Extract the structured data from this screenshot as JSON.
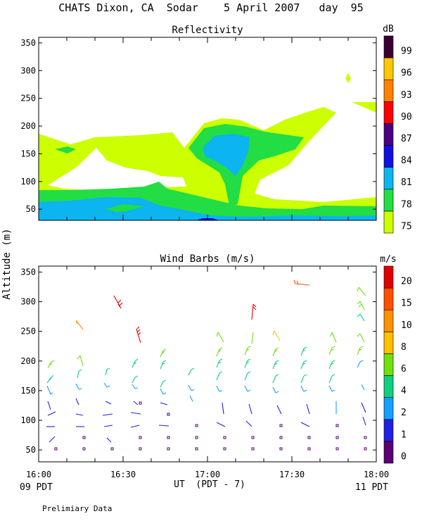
{
  "title": "CHATS Dixon, CA  Sodar    5 April 2007   day  95",
  "ylabel": "Altitude (m)",
  "xlabel": "UT  (PDT - 7)",
  "left_time_label": "09 PDT",
  "right_time_label": "11 PDT",
  "footnote": "Prelimiary Data",
  "chart_data": [
    {
      "type": "heatmap",
      "title": "Reflectivity",
      "xlabel": "UT  (PDT - 7)",
      "ylabel": "Altitude (m)",
      "x_ticks": [
        "16:00",
        "16:30",
        "17:00",
        "17:30",
        "18:00"
      ],
      "y_ticks": [
        50,
        100,
        150,
        200,
        250,
        300,
        350
      ],
      "ylim": [
        30,
        360
      ],
      "legend_title": "dB",
      "legend_levels": [
        {
          "label": "75",
          "color": "#ccff00"
        },
        {
          "label": "78",
          "color": "#22dd44"
        },
        {
          "label": "81",
          "color": "#0cb4f0"
        },
        {
          "label": "84",
          "color": "#1010e0"
        },
        {
          "label": "87",
          "color": "#4b0082"
        },
        {
          "label": "90",
          "color": "#ff0000"
        },
        {
          "label": "93",
          "color": "#ff8000"
        },
        {
          "label": "96",
          "color": "#ffc800"
        },
        {
          "label": "99",
          "color": "#3a0033"
        }
      ]
    },
    {
      "type": "scatter",
      "title": "Wind Barbs (m/s)",
      "xlabel": "UT  (PDT - 7)",
      "ylabel": "Altitude (m)",
      "x_ticks": [
        "16:00",
        "16:30",
        "17:00",
        "17:30",
        "18:00"
      ],
      "y_ticks": [
        50,
        100,
        150,
        200,
        250,
        300,
        350
      ],
      "ylim": [
        30,
        360
      ],
      "legend_title": "m/s",
      "legend_levels": [
        {
          "label": "0",
          "color": "#5a0070"
        },
        {
          "label": "1",
          "color": "#2020e0"
        },
        {
          "label": "2",
          "color": "#14a0ff"
        },
        {
          "label": "4",
          "color": "#10d080"
        },
        {
          "label": "6",
          "color": "#70e010"
        },
        {
          "label": "8",
          "color": "#ffc000"
        },
        {
          "label": "10",
          "color": "#ff9000"
        },
        {
          "label": "15",
          "color": "#ff5000"
        },
        {
          "label": "20",
          "color": "#e00000"
        }
      ]
    }
  ]
}
